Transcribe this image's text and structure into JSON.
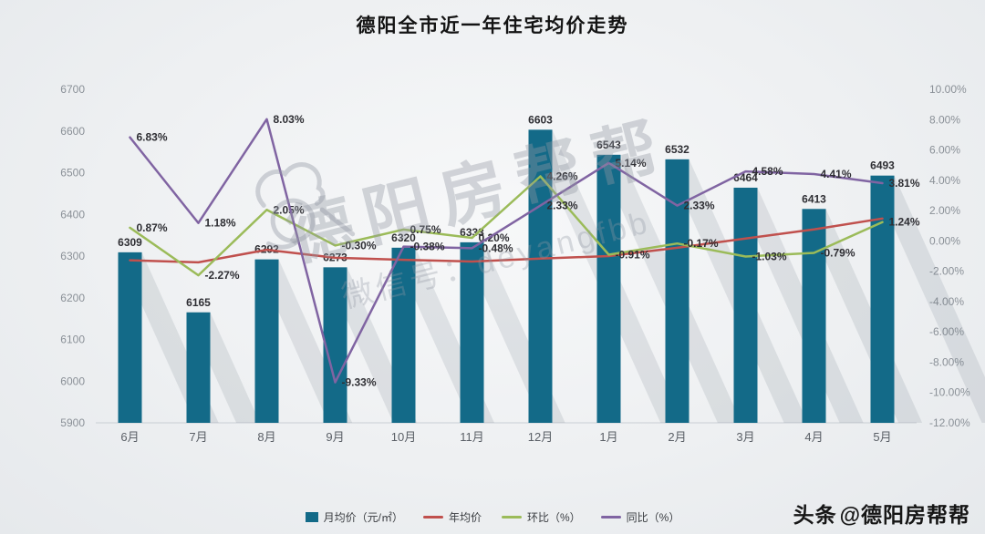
{
  "title": "德阳全市近一年住宅均价走势",
  "watermark": {
    "line1": "德阳房帮帮",
    "line2": "微信号：deyangfbb"
  },
  "footer": {
    "brand": "头条",
    "handle": "@德阳房帮帮"
  },
  "colors": {
    "bar": "#136A88",
    "yearly_avg_line": "#C0504D",
    "mom_line": "#9BBB59",
    "yoy_line": "#8064A2"
  },
  "legend": [
    {
      "key": "monthly-avg",
      "label": "月均价（元/㎡）",
      "type": "bar",
      "color": "#136A88"
    },
    {
      "key": "yearly-avg",
      "label": "年均价",
      "type": "line",
      "color": "#C0504D"
    },
    {
      "key": "mom",
      "label": "环比（%）",
      "type": "line",
      "color": "#9BBB59"
    },
    {
      "key": "yoy",
      "label": "同比（%）",
      "type": "line",
      "color": "#8064A2"
    }
  ],
  "chart_data": {
    "type": "bar",
    "title": "德阳全市近一年住宅均价走势",
    "grid": false,
    "legend_position": "bottom",
    "categories": [
      "6月",
      "7月",
      "8月",
      "9月",
      "10月",
      "11月",
      "12月",
      "1月",
      "2月",
      "3月",
      "4月",
      "5月"
    ],
    "left_axis": {
      "label": "元/㎡",
      "min": 5900,
      "max": 6700,
      "step": 100,
      "ticks": [
        "5900",
        "6000",
        "6100",
        "6200",
        "6300",
        "6400",
        "6500",
        "6600",
        "6700"
      ]
    },
    "right_axis": {
      "label": "%",
      "min": -12,
      "max": 10,
      "step": 2,
      "ticks": [
        "10.00%",
        "8.00%",
        "6.00%",
        "4.00%",
        "2.00%",
        "0.00%",
        "-2.00%",
        "-4.00%",
        "-6.00%",
        "-8.00%",
        "-10.00%",
        "-12.00%"
      ]
    },
    "series": [
      {
        "name": "月均价",
        "type": "bar",
        "axis": "left",
        "color": "#136A88",
        "values": [
          6309,
          6165,
          6292,
          6273,
          6320,
          6333,
          6603,
          6543,
          6532,
          6464,
          6413,
          6493
        ],
        "labels": [
          "6309",
          "6165",
          "6292",
          "6273",
          "6320",
          "6333",
          "6603",
          "6543",
          "6532",
          "6464",
          "6413",
          "6493"
        ]
      },
      {
        "name": "年均价",
        "type": "line",
        "axis": "left",
        "color": "#C0504D",
        "values": [
          6290,
          6285,
          6315,
          6296,
          6291,
          6287,
          6294,
          6300,
          6320,
          6342,
          6364,
          6390
        ],
        "labels": []
      },
      {
        "name": "环比",
        "type": "line",
        "axis": "right",
        "color": "#9BBB59",
        "values": [
          0.87,
          -2.27,
          2.05,
          -0.3,
          0.75,
          0.2,
          4.26,
          -0.91,
          -0.17,
          -1.03,
          -0.79,
          1.24
        ],
        "labels": [
          "0.87%",
          "-2.27%",
          "2.05%",
          "-0.30%",
          "0.75%",
          "0.20%",
          "4.26%",
          "-0.91%",
          "-0.17%",
          "-1.03%",
          "-0.79%",
          "1.24%"
        ]
      },
      {
        "name": "同比",
        "type": "line",
        "axis": "right",
        "color": "#8064A2",
        "values": [
          6.83,
          1.18,
          8.03,
          -9.33,
          -0.38,
          -0.48,
          2.33,
          5.14,
          2.33,
          4.58,
          4.41,
          3.81
        ],
        "labels": [
          "6.83%",
          "1.18%",
          "8.03%",
          "-9.33%",
          "-0.38%",
          "-0.48%",
          "2.33%",
          "5.14%",
          "2.33%",
          "4.58%",
          "4.41%",
          "3.81%"
        ]
      }
    ]
  }
}
